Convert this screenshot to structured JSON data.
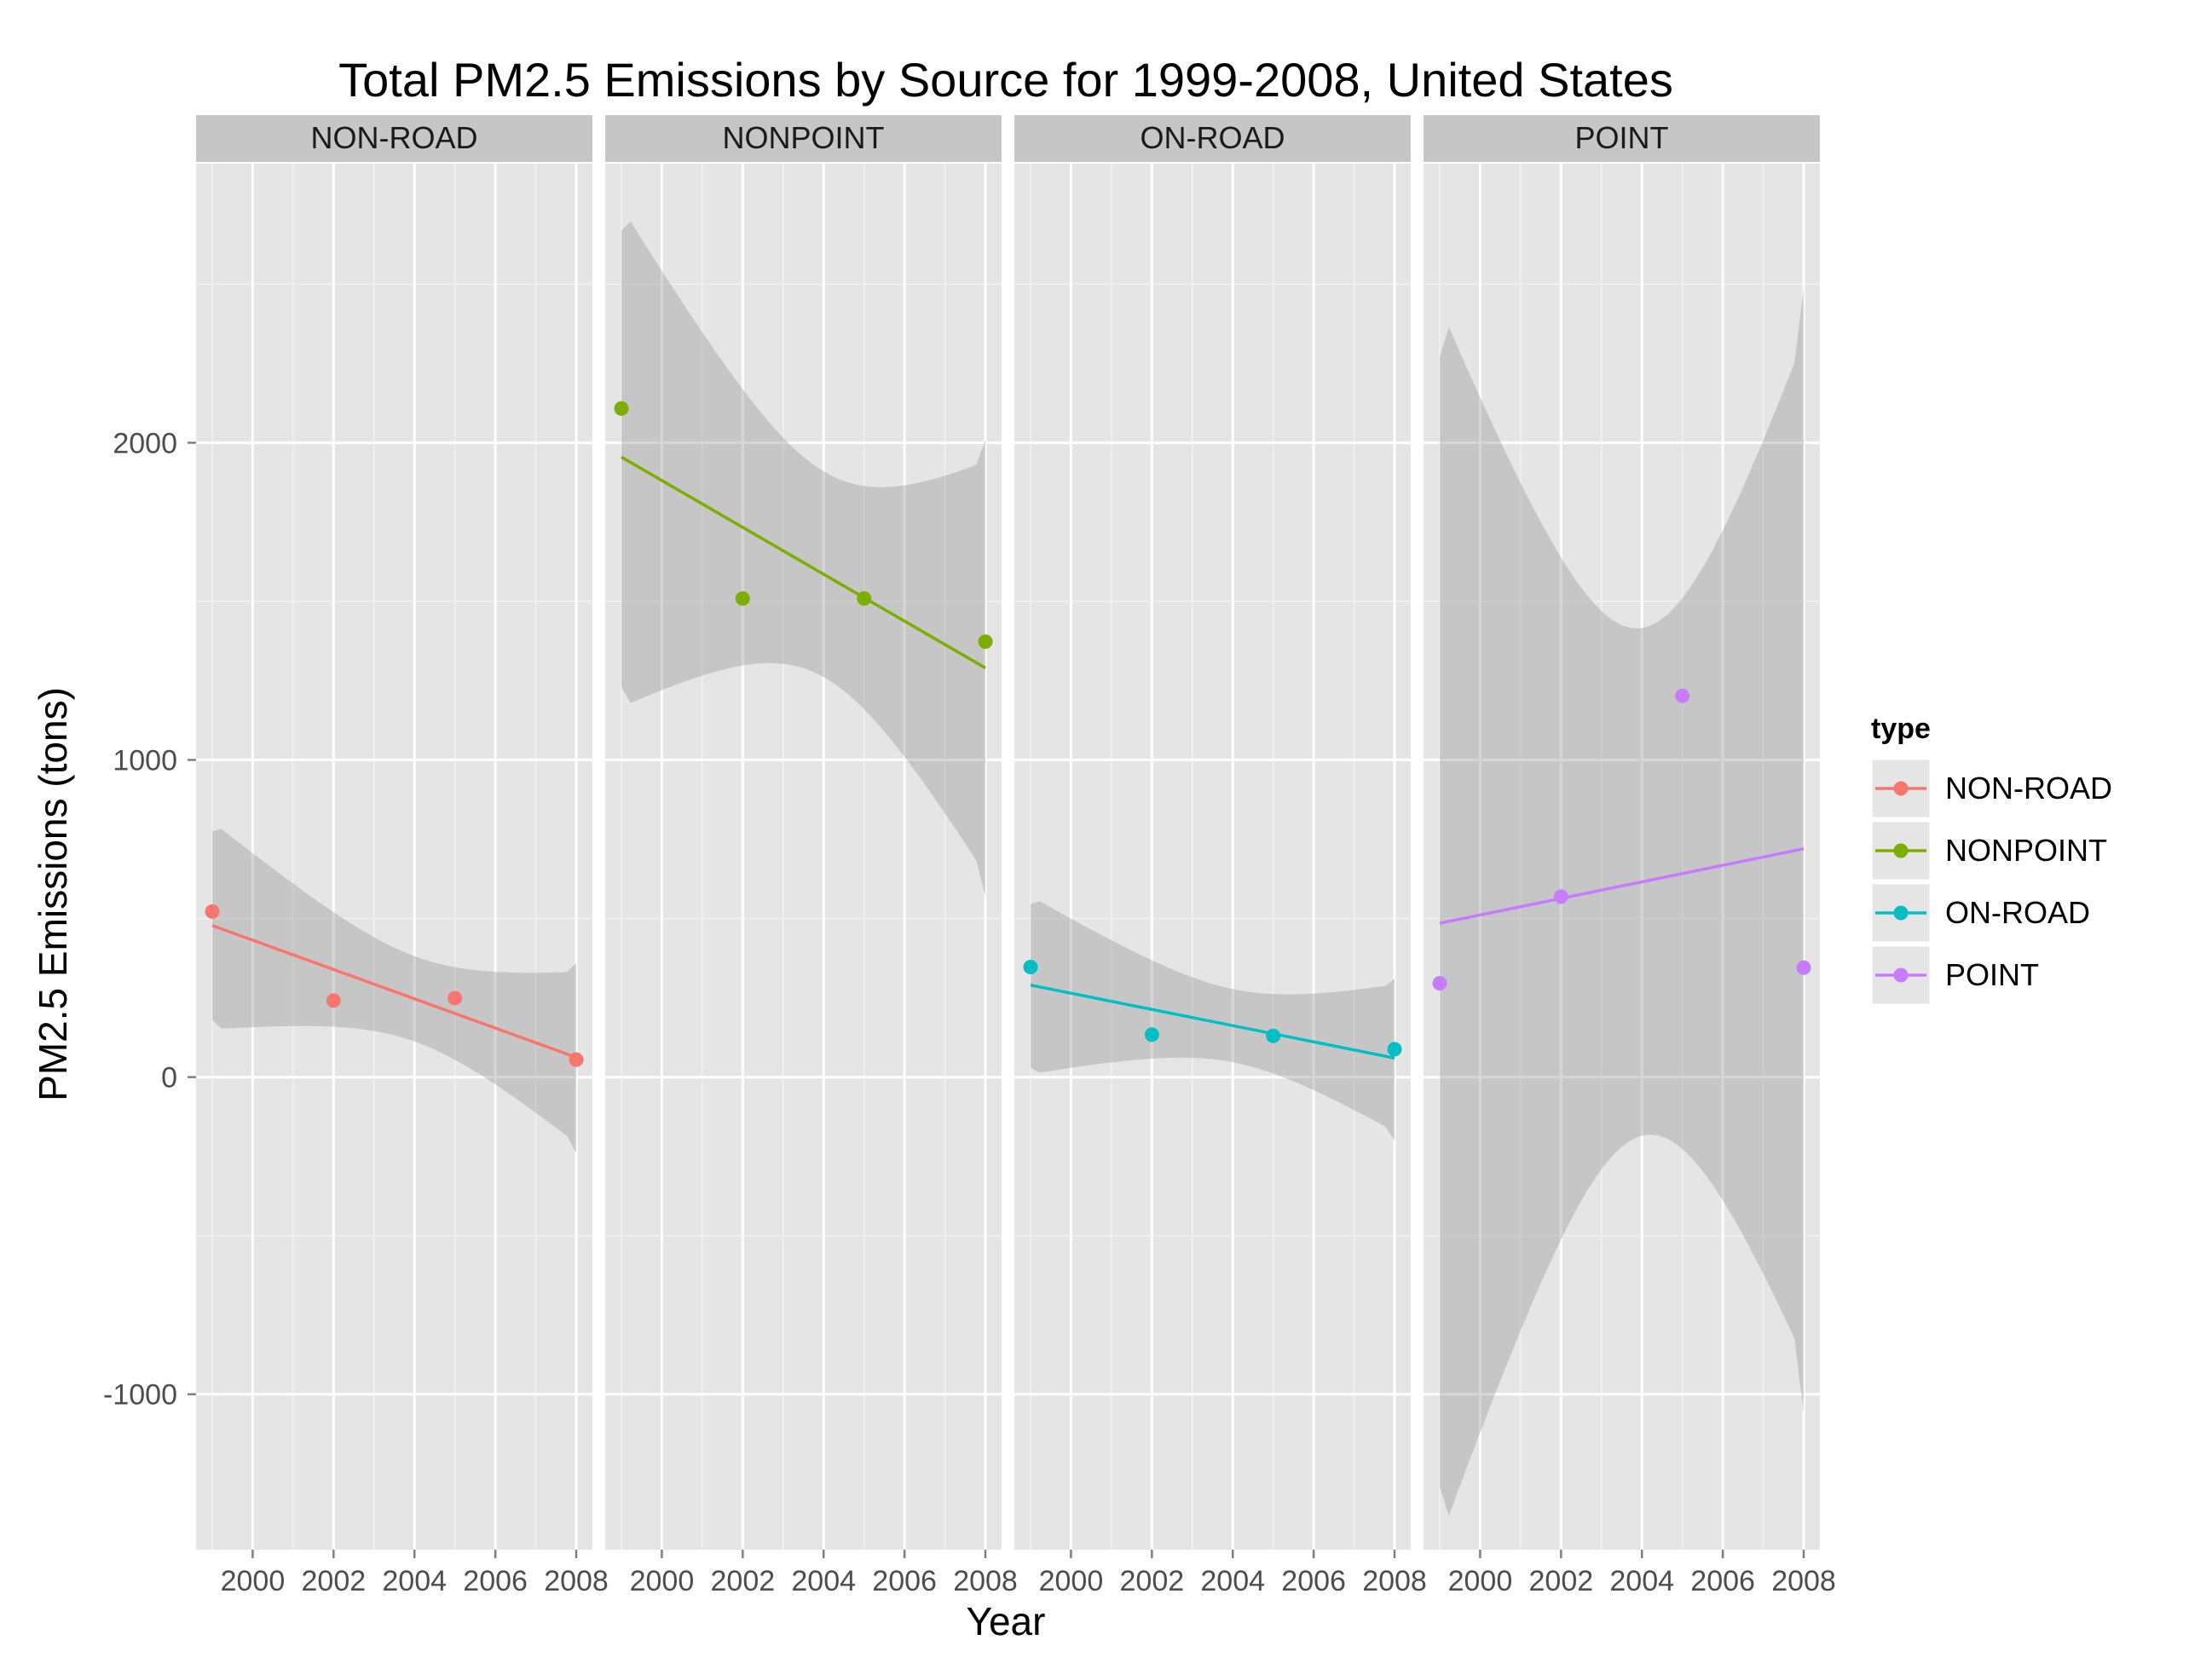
{
  "chart_data": {
    "type": "scatter",
    "title": "Total PM2.5 Emissions by Source for 1999-2008, United States",
    "xlabel": "Year",
    "ylabel": "PM2.5 Emissions (tons)",
    "xlim": [
      1998.6,
      2008.4
    ],
    "ylim": [
      -1490,
      2880
    ],
    "x_ticks": [
      "2000",
      "2002",
      "2004",
      "2006",
      "2008"
    ],
    "y_ticks": [
      "-1000",
      "0",
      "1000",
      "2000"
    ],
    "grid": true,
    "smoothing": "linear regression with confidence band",
    "legend": {
      "title": "type",
      "position": "right"
    },
    "facets": [
      {
        "name": "NON-ROAD",
        "color": "#F8766D",
        "x": [
          1999,
          2002,
          2005,
          2008
        ],
        "y": [
          522,
          241,
          249,
          55
        ],
        "fit": [
          478,
          62
        ],
        "band_upper": [
          775,
          360
        ],
        "band_lower": [
          180,
          -240
        ]
      },
      {
        "name": "NONPOINT",
        "color": "#7CAE00",
        "x": [
          1999,
          2002,
          2005,
          2008
        ],
        "y": [
          2108,
          1509,
          1509,
          1373
        ],
        "fit": [
          1955,
          1290
        ],
        "band_upper": [
          2670,
          2010
        ],
        "band_lower": [
          1230,
          570
        ]
      },
      {
        "name": "ON-ROAD",
        "color": "#00BFC4",
        "x": [
          1999,
          2002,
          2005,
          2008
        ],
        "y": [
          347,
          134,
          130,
          88
        ],
        "fit": [
          290,
          60
        ],
        "band_upper": [
          545,
          310
        ],
        "band_lower": [
          30,
          -200
        ]
      },
      {
        "name": "POINT",
        "color": "#C77CFF",
        "x": [
          1999,
          2002,
          2005,
          2008
        ],
        "y": [
          296,
          569,
          1202,
          345
        ],
        "fit": [
          485,
          720
        ],
        "band_upper": [
          2270,
          2490
        ],
        "band_lower": [
          -1290,
          -1060
        ]
      }
    ]
  }
}
